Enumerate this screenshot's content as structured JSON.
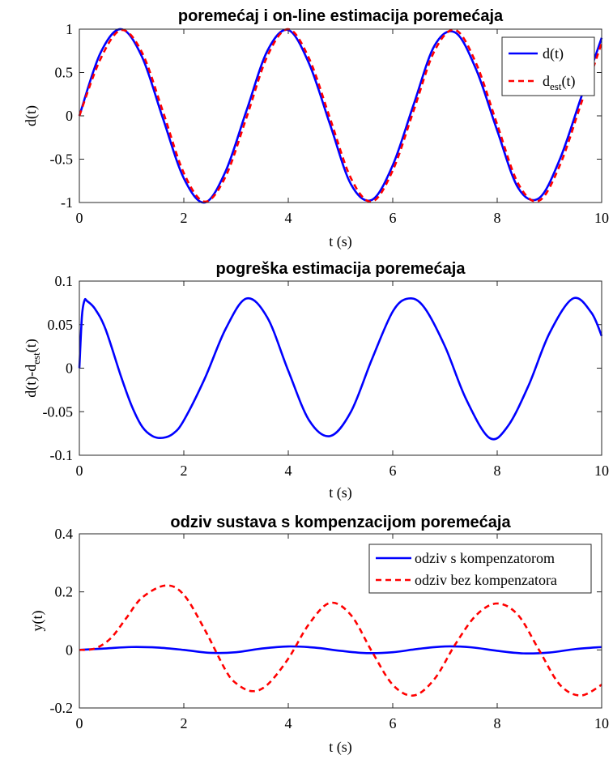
{
  "colors": {
    "blue": "#0000ff",
    "red": "#ff0000",
    "axis": "#262626"
  },
  "chart_data": [
    {
      "type": "line",
      "title": "poremećaj i on-line estimacija poremećaja",
      "xlabel": "t (s)",
      "ylabel": "d(t)",
      "xlim": [
        0,
        10
      ],
      "ylim": [
        -1,
        1
      ],
      "xticks": [
        0,
        2,
        4,
        6,
        8,
        10
      ],
      "yticks": [
        -1,
        -0.5,
        0,
        0.5,
        1
      ],
      "xtick_labels": [
        "0",
        "2",
        "4",
        "6",
        "8",
        "10"
      ],
      "ytick_labels": [
        "-1",
        "-0.5",
        "0",
        "0.5",
        "1"
      ],
      "grid": false,
      "legend_position": "top-right",
      "series": [
        {
          "name": "d(t)",
          "color": "#0000ff",
          "style": "solid",
          "x": [
            0,
            0.4,
            0.8,
            1.2,
            1.6,
            2.0,
            2.4,
            2.8,
            3.2,
            3.6,
            4.0,
            4.4,
            4.8,
            5.2,
            5.6,
            6.0,
            6.4,
            6.8,
            7.2,
            7.6,
            8.0,
            8.4,
            8.8,
            9.2,
            9.6,
            10.0
          ],
          "y": [
            0,
            0.72,
            1.0,
            0.68,
            -0.03,
            -0.72,
            -1.0,
            -0.64,
            0.06,
            0.75,
            0.99,
            0.6,
            -0.1,
            -0.79,
            -0.97,
            -0.57,
            0.13,
            0.81,
            0.96,
            0.53,
            -0.17,
            -0.83,
            -0.95,
            -0.5,
            0.2,
            0.9
          ]
        },
        {
          "name": "d_est(t)",
          "label_main": "d",
          "label_sub": "est",
          "label_tail": "(t)",
          "color": "#ff0000",
          "style": "dashed",
          "x": [
            0,
            0.4,
            0.8,
            1.2,
            1.6,
            2.0,
            2.4,
            2.8,
            3.2,
            3.6,
            4.0,
            4.4,
            4.8,
            5.2,
            5.6,
            6.0,
            6.4,
            6.8,
            7.2,
            7.6,
            8.0,
            8.4,
            8.8,
            9.2,
            9.6,
            10.0
          ],
          "y": [
            0,
            0.65,
            0.99,
            0.73,
            0.05,
            -0.66,
            -0.99,
            -0.7,
            -0.02,
            0.69,
            1.0,
            0.66,
            -0.03,
            -0.72,
            -0.99,
            -0.63,
            0.06,
            0.75,
            0.99,
            0.6,
            -0.1,
            -0.78,
            -0.98,
            -0.57,
            0.13,
            0.84
          ]
        }
      ]
    },
    {
      "type": "line",
      "title": "pogreška estimacija poremećaja",
      "xlabel": "t (s)",
      "ylabel": "d(t)-d_est(t)",
      "ylabel_main": "d(t)-d",
      "ylabel_sub": "est",
      "ylabel_tail": "(t)",
      "xlim": [
        0,
        10
      ],
      "ylim": [
        -0.1,
        0.1
      ],
      "xticks": [
        0,
        2,
        4,
        6,
        8,
        10
      ],
      "yticks": [
        -0.1,
        -0.05,
        0,
        0.05,
        0.1
      ],
      "xtick_labels": [
        "0",
        "2",
        "4",
        "6",
        "8",
        "10"
      ],
      "ytick_labels": [
        "-0.1",
        "-0.05",
        "0",
        "0.05",
        "0.1"
      ],
      "grid": false,
      "series": [
        {
          "color": "#0000ff",
          "style": "solid",
          "x": [
            0,
            0.05,
            0.1,
            0.15,
            0.3,
            0.5,
            0.8,
            1.0,
            1.2,
            1.4,
            1.6,
            1.8,
            2.0,
            2.4,
            2.8,
            3.2,
            3.6,
            4.0,
            4.4,
            4.8,
            5.2,
            5.6,
            6.0,
            6.3,
            6.6,
            7.0,
            7.4,
            7.85,
            8.2,
            8.6,
            9.0,
            9.45,
            9.8,
            10.0
          ],
          "y": [
            0.0,
            0.06,
            0.078,
            0.077,
            0.068,
            0.045,
            -0.01,
            -0.043,
            -0.067,
            -0.078,
            -0.08,
            -0.075,
            -0.06,
            -0.012,
            0.045,
            0.08,
            0.058,
            -0.003,
            -0.06,
            -0.078,
            -0.05,
            0.01,
            0.065,
            0.08,
            0.07,
            0.025,
            -0.035,
            -0.08,
            -0.067,
            -0.02,
            0.04,
            0.08,
            0.064,
            0.037
          ]
        }
      ]
    },
    {
      "type": "line",
      "title": "odziv sustava s kompenzacijom poremećaja",
      "xlabel": "t (s)",
      "ylabel": "y(t)",
      "xlim": [
        0,
        10
      ],
      "ylim": [
        -0.2,
        0.4
      ],
      "xticks": [
        0,
        2,
        4,
        6,
        8,
        10
      ],
      "yticks": [
        -0.2,
        0,
        0.2,
        0.4
      ],
      "xtick_labels": [
        "0",
        "2",
        "4",
        "6",
        "8",
        "10"
      ],
      "ytick_labels": [
        "-0.2",
        "0",
        "0.2",
        "0.4"
      ],
      "grid": false,
      "legend_position": "top-right",
      "series": [
        {
          "name": "odziv s kompenzatorom",
          "color": "#0000ff",
          "style": "solid",
          "x": [
            0,
            0.5,
            1.0,
            1.5,
            2.0,
            2.5,
            3.0,
            3.5,
            4.0,
            4.5,
            5.0,
            5.5,
            6.0,
            6.5,
            7.0,
            7.5,
            8.0,
            8.5,
            9.0,
            9.5,
            10.0
          ],
          "y": [
            0,
            0.005,
            0.01,
            0.008,
            0.0,
            -0.01,
            -0.008,
            0.005,
            0.012,
            0.008,
            -0.003,
            -0.011,
            -0.008,
            0.004,
            0.012,
            0.009,
            -0.003,
            -0.012,
            -0.009,
            0.003,
            0.01
          ]
        },
        {
          "name": "odziv bez kompenzatora",
          "color": "#ff0000",
          "style": "dashed",
          "x": [
            0,
            0.3,
            0.6,
            0.9,
            1.2,
            1.65,
            2.0,
            2.4,
            2.8,
            3.0,
            3.3,
            3.6,
            4.0,
            4.4,
            4.8,
            5.2,
            5.6,
            6.0,
            6.4,
            6.8,
            7.2,
            7.6,
            8.0,
            8.4,
            8.8,
            9.2,
            9.6,
            10.0
          ],
          "y": [
            0,
            0.005,
            0.04,
            0.11,
            0.18,
            0.222,
            0.19,
            0.07,
            -0.07,
            -0.115,
            -0.142,
            -0.12,
            -0.03,
            0.09,
            0.162,
            0.12,
            -0.005,
            -0.12,
            -0.157,
            -0.1,
            0.02,
            0.12,
            0.16,
            0.12,
            0.0,
            -0.12,
            -0.157,
            -0.12
          ]
        }
      ]
    }
  ]
}
